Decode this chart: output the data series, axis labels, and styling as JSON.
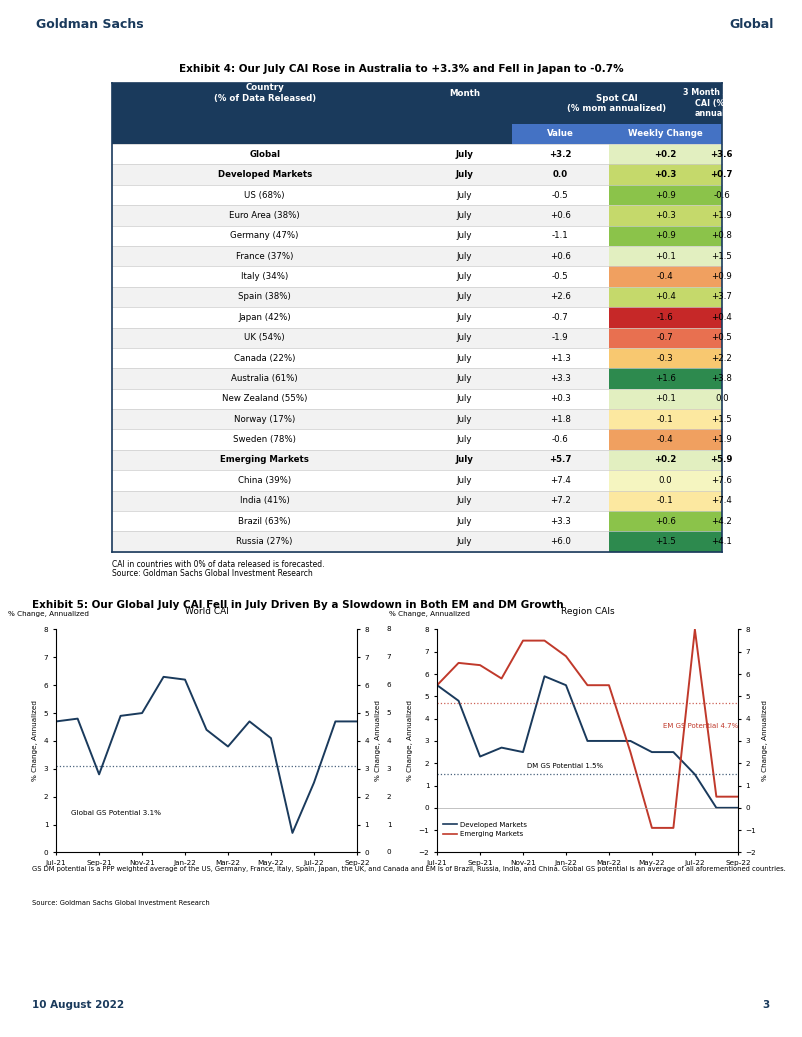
{
  "title_exhibit4": "Exhibit 4: Our July CAI Rose in Australia to +3.3% and Fell in Japan to -0.7%",
  "title_exhibit5": "Exhibit 5: Our Global July CAI Fell in July Driven By a Slowdown in Both EM and DM Growth",
  "header_color": "#1a3a5c",
  "header_text_color": "#ffffff",
  "subheader_color": "#4472c4",
  "subheader_text_color": "#ffffff",
  "row_alt_color": "#f2f2f2",
  "row_color": "#ffffff",
  "goldman_blue": "#1a3a5c",
  "table_rows": [
    {
      "country": "Global",
      "month": "July",
      "value": "+3.2",
      "weekly_change": "+0.2",
      "three_month": "+3.6",
      "bold": true,
      "wc_val": 0.2
    },
    {
      "country": "Developed Markets",
      "month": "July",
      "value": "0.0",
      "weekly_change": "+0.3",
      "three_month": "+0.7",
      "bold": true,
      "wc_val": 0.3
    },
    {
      "country": "US (68%)",
      "month": "July",
      "value": "-0.5",
      "weekly_change": "+0.9",
      "three_month": "-0.6",
      "bold": false,
      "wc_val": 0.9
    },
    {
      "country": "Euro Area (38%)",
      "month": "July",
      "value": "+0.6",
      "weekly_change": "+0.3",
      "three_month": "+1.9",
      "bold": false,
      "wc_val": 0.3
    },
    {
      "country": "Germany (47%)",
      "month": "July",
      "value": "-1.1",
      "weekly_change": "+0.9",
      "three_month": "+0.8",
      "bold": false,
      "wc_val": 0.9
    },
    {
      "country": "France (37%)",
      "month": "July",
      "value": "+0.6",
      "weekly_change": "+0.1",
      "three_month": "+1.5",
      "bold": false,
      "wc_val": 0.1
    },
    {
      "country": "Italy (34%)",
      "month": "July",
      "value": "-0.5",
      "weekly_change": "-0.4",
      "three_month": "+0.9",
      "bold": false,
      "wc_val": -0.4
    },
    {
      "country": "Spain (38%)",
      "month": "July",
      "value": "+2.6",
      "weekly_change": "+0.4",
      "three_month": "+3.7",
      "bold": false,
      "wc_val": 0.4
    },
    {
      "country": "Japan (42%)",
      "month": "July",
      "value": "-0.7",
      "weekly_change": "-1.6",
      "three_month": "+0.4",
      "bold": false,
      "wc_val": -1.6
    },
    {
      "country": "UK (54%)",
      "month": "July",
      "value": "-1.9",
      "weekly_change": "-0.7",
      "three_month": "+0.5",
      "bold": false,
      "wc_val": -0.7
    },
    {
      "country": "Canada (22%)",
      "month": "July",
      "value": "+1.3",
      "weekly_change": "-0.3",
      "three_month": "+2.2",
      "bold": false,
      "wc_val": -0.3
    },
    {
      "country": "Australia (61%)",
      "month": "July",
      "value": "+3.3",
      "weekly_change": "+1.6",
      "three_month": "+3.8",
      "bold": false,
      "wc_val": 1.6
    },
    {
      "country": "New Zealand (55%)",
      "month": "July",
      "value": "+0.3",
      "weekly_change": "+0.1",
      "three_month": "0.0",
      "bold": false,
      "wc_val": 0.1
    },
    {
      "country": "Norway (17%)",
      "month": "July",
      "value": "+1.8",
      "weekly_change": "-0.1",
      "three_month": "+1.5",
      "bold": false,
      "wc_val": -0.1
    },
    {
      "country": "Sweden (78%)",
      "month": "July",
      "value": "-0.6",
      "weekly_change": "-0.4",
      "three_month": "+1.9",
      "bold": false,
      "wc_val": -0.4
    },
    {
      "country": "Emerging Markets",
      "month": "July",
      "value": "+5.7",
      "weekly_change": "+0.2",
      "three_month": "+5.9",
      "bold": true,
      "wc_val": 0.2
    },
    {
      "country": "China (39%)",
      "month": "July",
      "value": "+7.4",
      "weekly_change": "0.0",
      "three_month": "+7.6",
      "bold": false,
      "wc_val": 0.0
    },
    {
      "country": "India (41%)",
      "month": "July",
      "value": "+7.2",
      "weekly_change": "-0.1",
      "three_month": "+7.4",
      "bold": false,
      "wc_val": -0.1
    },
    {
      "country": "Brazil (63%)",
      "month": "July",
      "value": "+3.3",
      "weekly_change": "+0.6",
      "three_month": "+4.2",
      "bold": false,
      "wc_val": 0.6
    },
    {
      "country": "Russia (27%)",
      "month": "July",
      "value": "+6.0",
      "weekly_change": "+1.5",
      "three_month": "+4.1",
      "bold": false,
      "wc_val": 1.5
    }
  ],
  "footnote1": "CAI in countries with 0% of data released is forecasted.",
  "footnote2": "Source: Goldman Sachs Global Investment Research",
  "global_potential": 3.1,
  "dm_potential": 1.5,
  "em_potential": 4.7,
  "chart_footnote": "GS DM potential is a PPP weighted average of the US, Germany, France, Italy, Spain, Japan, the UK, and Canada and EM is of Brazil, Russia, India, and China. Global GS potential is an average of all aforementioned countries.",
  "chart_source": "Source: Goldman Sachs Global Investment Research",
  "world_y": [
    4.7,
    4.8,
    2.8,
    4.9,
    5.0,
    6.3,
    6.2,
    4.4,
    3.8,
    4.7,
    4.1,
    0.7,
    2.5,
    4.7,
    4.7
  ],
  "dm_y": [
    5.5,
    4.8,
    2.3,
    2.7,
    2.5,
    5.9,
    5.5,
    3.0,
    3.0,
    3.0,
    2.5,
    2.5,
    1.5,
    0.0,
    0.0
  ],
  "em_y": [
    5.5,
    6.5,
    6.4,
    5.8,
    7.5,
    7.5,
    6.8,
    5.5,
    5.5,
    2.5,
    -0.9,
    -0.9,
    8.0,
    0.5,
    0.5
  ],
  "x_labels": [
    "Jul-21",
    "Sep-21",
    "Nov-21",
    "Jan-22",
    "Mar-22",
    "May-22",
    "Jul-22",
    "Sep-22"
  ],
  "dark_blue": "#1a3a5c",
  "red_color": "#c0392b"
}
